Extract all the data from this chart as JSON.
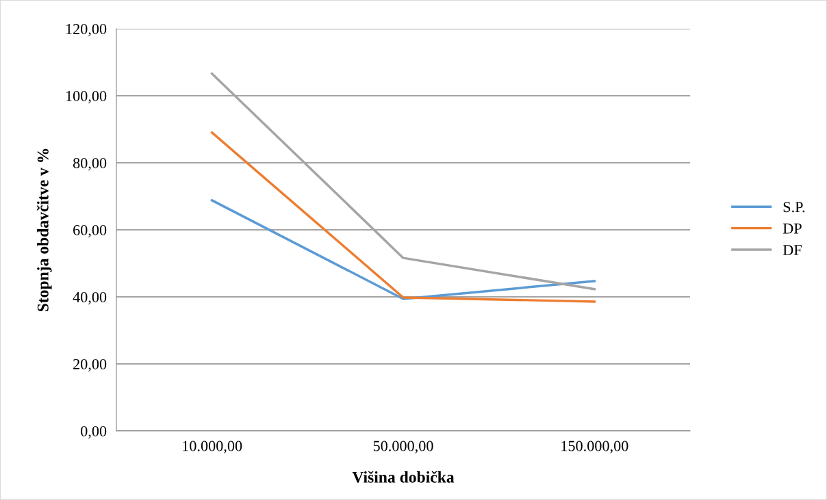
{
  "chart_data": {
    "type": "line",
    "xlabel": "Višina dobička",
    "ylabel": "Stopnja obdavčitve v %",
    "categories": [
      "10.000,00",
      "50.000,00",
      "150.000,00"
    ],
    "series": [
      {
        "name": "S.P.",
        "color": "#5b9bd5",
        "values": [
          68.8,
          39.4,
          44.7
        ]
      },
      {
        "name": "DP",
        "color": "#ed7d31",
        "values": [
          89.0,
          39.8,
          38.6
        ]
      },
      {
        "name": "DF",
        "color": "#a5a5a5",
        "values": [
          106.6,
          51.6,
          42.3
        ]
      }
    ],
    "ylim": [
      0,
      120
    ],
    "yticks": [
      {
        "value": 0,
        "label": "0,00"
      },
      {
        "value": 20,
        "label": "20,00"
      },
      {
        "value": 40,
        "label": "40,00"
      },
      {
        "value": 60,
        "label": "60,00"
      },
      {
        "value": 80,
        "label": "80,00"
      },
      {
        "value": 100,
        "label": "100,00"
      },
      {
        "value": 120,
        "label": "120,00"
      }
    ],
    "grid": "y",
    "legend": "right",
    "marker": "none",
    "line_style": "solid"
  }
}
